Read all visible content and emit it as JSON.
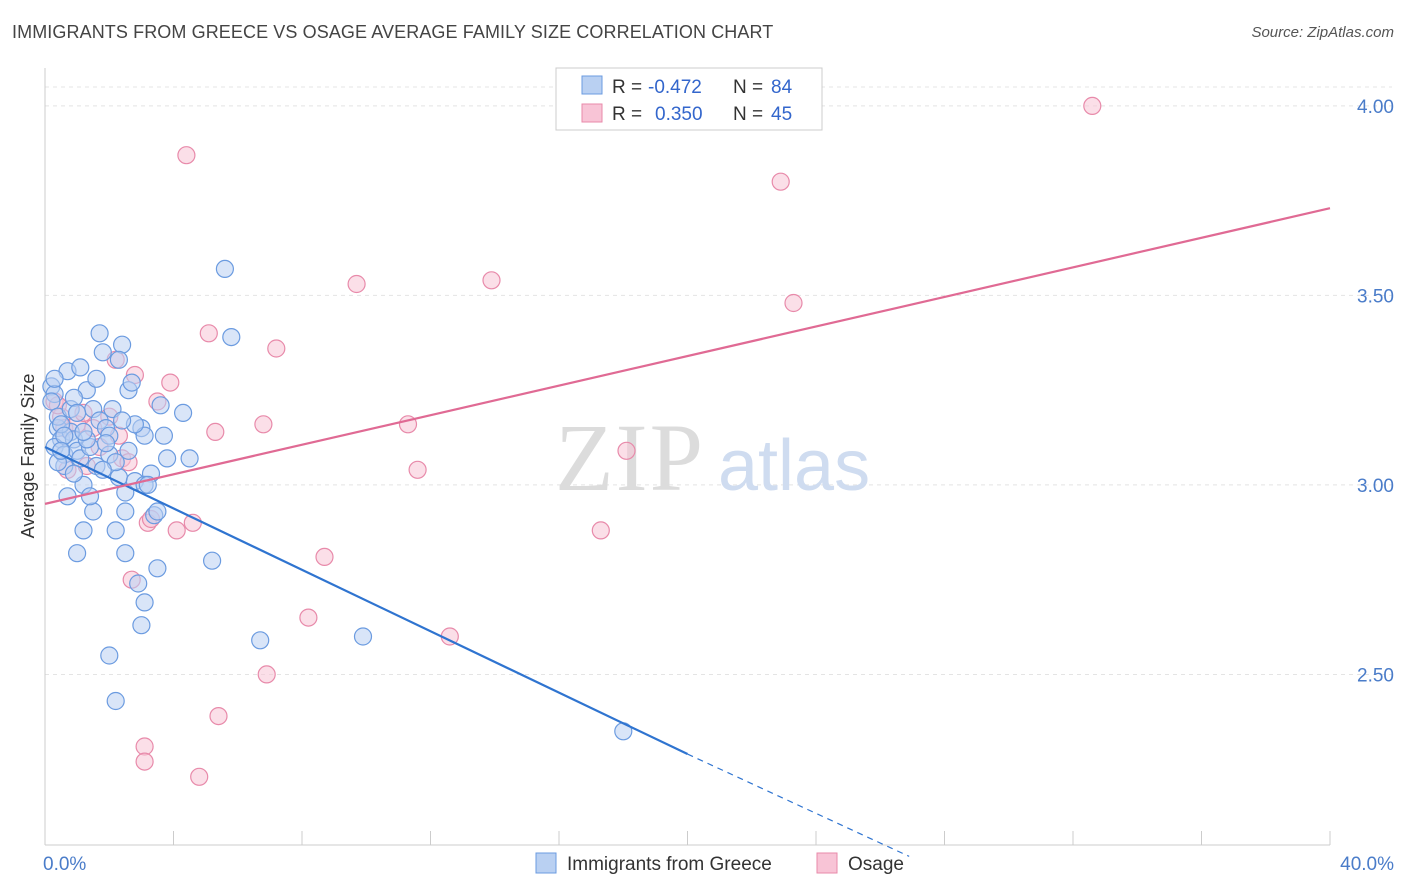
{
  "chart_data": {
    "type": "scatter",
    "title": "IMMIGRANTS FROM GREECE VS OSAGE AVERAGE FAMILY SIZE CORRELATION CHART",
    "source": "Source: ZipAtlas.com",
    "ylabel": "Average Family Size",
    "xlim": [
      0,
      40
    ],
    "ylim": [
      2.05,
      4.1
    ],
    "x_tick_labels": [
      "0.0%",
      "40.0%"
    ],
    "y_ticks": [
      2.5,
      3.0,
      3.5,
      4.0
    ],
    "y_tick_labels": [
      "2.50",
      "3.00",
      "3.50",
      "4.00"
    ],
    "watermark": "ZIPatlas",
    "legend": {
      "rows": [
        {
          "r_label": "R =",
          "r_value": "-0.472",
          "n_label": "N =",
          "n_value": "84"
        },
        {
          "r_label": "R =",
          "r_value": "0.350",
          "n_label": "N =",
          "n_value": "45"
        }
      ]
    },
    "series": [
      {
        "name": "Immigrants from Greece",
        "color": "#6b9be0",
        "fill": "#b9d0f2",
        "trend": {
          "x0": 0,
          "y0": 3.1,
          "x1": 20,
          "y1": 2.29,
          "dash_x1": 26.9,
          "dash_y1": 2.02,
          "color": "#2f74d0"
        },
        "points": [
          [
            0.2,
            3.26
          ],
          [
            0.3,
            3.24
          ],
          [
            0.2,
            3.22
          ],
          [
            0.4,
            3.15
          ],
          [
            0.5,
            3.12
          ],
          [
            0.3,
            3.1
          ],
          [
            0.6,
            3.08
          ],
          [
            0.4,
            3.18
          ],
          [
            0.8,
            3.14
          ],
          [
            0.7,
            3.3
          ],
          [
            0.9,
            3.12
          ],
          [
            1.0,
            3.09
          ],
          [
            0.6,
            3.05
          ],
          [
            1.1,
            3.07
          ],
          [
            1.3,
            3.25
          ],
          [
            0.8,
            3.2
          ],
          [
            1.5,
            3.2
          ],
          [
            1.2,
            3.0
          ],
          [
            1.4,
            3.1
          ],
          [
            1.6,
            3.05
          ],
          [
            0.9,
            3.03
          ],
          [
            1.7,
            3.17
          ],
          [
            1.9,
            3.15
          ],
          [
            2.0,
            3.08
          ],
          [
            1.8,
            3.35
          ],
          [
            1.7,
            3.4
          ],
          [
            2.4,
            3.37
          ],
          [
            2.6,
            3.25
          ],
          [
            2.3,
            3.33
          ],
          [
            1.5,
            2.93
          ],
          [
            1.4,
            2.97
          ],
          [
            1.2,
            2.88
          ],
          [
            1.0,
            2.82
          ],
          [
            2.0,
            3.13
          ],
          [
            2.3,
            3.02
          ],
          [
            2.6,
            3.09
          ],
          [
            2.5,
            2.98
          ],
          [
            2.5,
            2.93
          ],
          [
            2.2,
            2.88
          ],
          [
            2.5,
            2.82
          ],
          [
            2.8,
            3.01
          ],
          [
            3.0,
            3.15
          ],
          [
            3.1,
            3.13
          ],
          [
            3.3,
            3.03
          ],
          [
            3.4,
            2.92
          ],
          [
            3.5,
            2.78
          ],
          [
            3.7,
            3.13
          ],
          [
            3.8,
            3.07
          ],
          [
            2.9,
            2.74
          ],
          [
            3.0,
            2.63
          ],
          [
            3.1,
            2.69
          ],
          [
            2.0,
            2.55
          ],
          [
            2.2,
            2.43
          ],
          [
            4.3,
            3.19
          ],
          [
            4.5,
            3.07
          ],
          [
            5.2,
            2.8
          ],
          [
            5.6,
            3.57
          ],
          [
            5.8,
            3.39
          ],
          [
            6.7,
            2.59
          ],
          [
            9.9,
            2.6
          ],
          [
            18.0,
            2.35
          ],
          [
            0.5,
            3.16
          ],
          [
            1.1,
            3.31
          ],
          [
            2.1,
            3.2
          ],
          [
            3.1,
            3.0
          ],
          [
            0.9,
            3.23
          ],
          [
            1.6,
            3.28
          ],
          [
            0.4,
            3.06
          ],
          [
            1.3,
            3.12
          ],
          [
            1.9,
            3.11
          ],
          [
            2.8,
            3.16
          ],
          [
            0.7,
            2.97
          ],
          [
            3.5,
            2.93
          ],
          [
            0.6,
            3.13
          ],
          [
            0.3,
            3.28
          ],
          [
            1.0,
            3.19
          ],
          [
            2.2,
            3.06
          ],
          [
            2.7,
            3.27
          ],
          [
            3.2,
            3.0
          ],
          [
            0.5,
            3.09
          ],
          [
            1.2,
            3.14
          ],
          [
            1.8,
            3.04
          ],
          [
            2.4,
            3.17
          ],
          [
            3.6,
            3.21
          ]
        ]
      },
      {
        "name": "Osage",
        "color": "#e88aaa",
        "fill": "#f8c4d6",
        "trend": {
          "x0": 0,
          "y0": 2.95,
          "x1": 40,
          "y1": 3.73,
          "color": "#e06a94"
        },
        "points": [
          [
            0.3,
            3.22
          ],
          [
            0.5,
            3.18
          ],
          [
            0.6,
            3.15
          ],
          [
            0.7,
            3.04
          ],
          [
            1.0,
            3.16
          ],
          [
            1.2,
            3.19
          ],
          [
            1.5,
            3.15
          ],
          [
            1.7,
            3.1
          ],
          [
            2.0,
            3.18
          ],
          [
            2.2,
            3.33
          ],
          [
            2.4,
            3.07
          ],
          [
            2.6,
            3.06
          ],
          [
            2.7,
            2.75
          ],
          [
            2.8,
            3.29
          ],
          [
            3.1,
            2.31
          ],
          [
            3.2,
            2.9
          ],
          [
            3.1,
            2.27
          ],
          [
            3.3,
            2.91
          ],
          [
            3.5,
            3.22
          ],
          [
            3.9,
            3.27
          ],
          [
            4.1,
            2.88
          ],
          [
            4.4,
            3.87
          ],
          [
            4.6,
            2.9
          ],
          [
            4.8,
            2.23
          ],
          [
            5.1,
            3.4
          ],
          [
            5.3,
            3.14
          ],
          [
            5.4,
            2.39
          ],
          [
            6.8,
            3.16
          ],
          [
            6.9,
            2.5
          ],
          [
            7.2,
            3.36
          ],
          [
            8.2,
            2.65
          ],
          [
            8.7,
            2.81
          ],
          [
            9.7,
            3.53
          ],
          [
            11.3,
            3.16
          ],
          [
            11.6,
            3.04
          ],
          [
            12.6,
            2.6
          ],
          [
            13.9,
            3.54
          ],
          [
            17.3,
            2.88
          ],
          [
            18.1,
            3.09
          ],
          [
            22.9,
            3.8
          ],
          [
            23.3,
            3.48
          ],
          [
            32.6,
            4.0
          ],
          [
            1.3,
            3.05
          ],
          [
            2.3,
            3.13
          ],
          [
            0.4,
            3.21
          ]
        ]
      }
    ]
  }
}
